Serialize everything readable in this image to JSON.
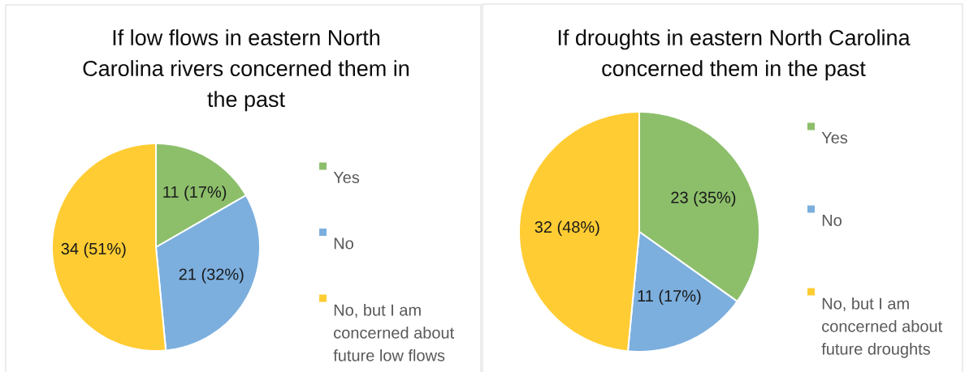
{
  "chart_data": [
    {
      "type": "pie",
      "title": "If low flows in eastern North Carolina rivers concerned them in the past",
      "categories": [
        "Yes",
        "No",
        "No, but I am concerned about future low flows"
      ],
      "values": [
        11,
        21,
        34
      ],
      "colors": [
        "#8dbf6b",
        "#7cafde",
        "#ffcc33"
      ],
      "value_labels": [
        "11 (17%)",
        "21 (32%)",
        "34 (51%)"
      ],
      "legend": "right"
    },
    {
      "type": "pie",
      "title": "If droughts in eastern North Carolina concerned them in the past",
      "categories": [
        "Yes",
        "No",
        "No, but I am concerned about future droughts"
      ],
      "values": [
        23,
        11,
        32
      ],
      "colors": [
        "#8dbf6b",
        "#7cafde",
        "#ffcc33"
      ],
      "value_labels": [
        "23 (35%)",
        "11 (17%)",
        "32 (48%)"
      ],
      "legend": "right"
    }
  ]
}
